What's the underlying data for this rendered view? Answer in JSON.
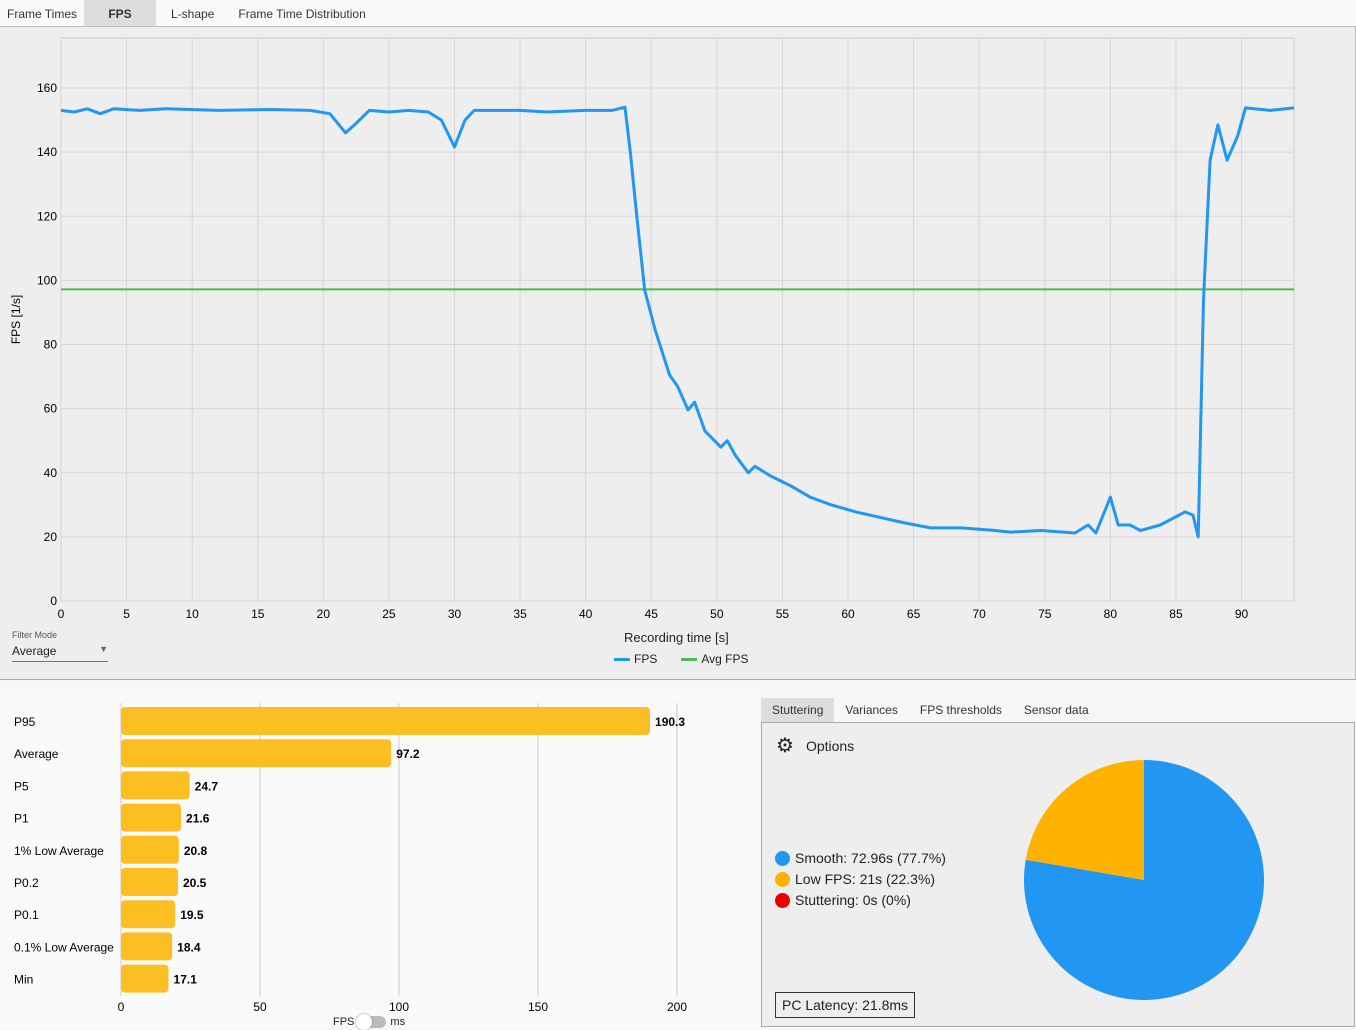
{
  "tabs": [
    "Frame Times",
    "FPS",
    "L-shape",
    "Frame Time Distribution"
  ],
  "active_tab": "FPS",
  "chart_data": [
    {
      "type": "line",
      "title": "",
      "xlabel": "Recording time [s]",
      "ylabel": "FPS [1/s]",
      "xlim": [
        0,
        94
      ],
      "ylim": [
        0,
        170
      ],
      "xticks": [
        0,
        5,
        10,
        15,
        20,
        25,
        30,
        35,
        40,
        45,
        50,
        55,
        60,
        65,
        70,
        75,
        80,
        85,
        90
      ],
      "yticks": [
        0,
        20,
        40,
        60,
        80,
        100,
        120,
        140,
        160
      ],
      "grid": true,
      "legend": "bottom-center",
      "series": [
        {
          "name": "FPS",
          "color": "#2196f3",
          "points": [
            [
              0,
              153
            ],
            [
              1,
              152.5
            ],
            [
              2,
              153.5
            ],
            [
              3,
              152
            ],
            [
              4,
              153.5
            ],
            [
              6,
              153
            ],
            [
              8,
              153.5
            ],
            [
              12,
              153
            ],
            [
              16,
              153.3
            ],
            [
              19,
              153
            ],
            [
              20.5,
              152
            ],
            [
              21.7,
              146
            ],
            [
              22.5,
              149
            ],
            [
              23.5,
              153
            ],
            [
              25,
              152.5
            ],
            [
              26.5,
              153
            ],
            [
              28,
              152.5
            ],
            [
              29,
              150
            ],
            [
              30,
              141.6
            ],
            [
              30.8,
              150
            ],
            [
              31.5,
              153
            ],
            [
              35,
              153
            ],
            [
              37,
              152.5
            ],
            [
              40,
              153
            ],
            [
              42,
              153
            ],
            [
              43,
              154
            ],
            [
              43.4,
              140
            ],
            [
              43.9,
              120
            ],
            [
              44.5,
              97
            ],
            [
              45.3,
              84.5
            ],
            [
              46.4,
              70.5
            ],
            [
              47,
              67
            ],
            [
              47.8,
              59.6
            ],
            [
              48.3,
              62
            ],
            [
              49.1,
              53
            ],
            [
              50.3,
              48
            ],
            [
              50.8,
              50
            ],
            [
              51.4,
              45.5
            ],
            [
              52.4,
              40
            ],
            [
              52.9,
              42
            ],
            [
              54.1,
              39
            ],
            [
              55.6,
              36
            ],
            [
              57.1,
              32.4
            ],
            [
              58.7,
              30
            ],
            [
              60.6,
              27.8
            ],
            [
              62.5,
              26
            ],
            [
              64.4,
              24.3
            ],
            [
              66.3,
              22.8
            ],
            [
              68.6,
              22.8
            ],
            [
              70.9,
              22.1
            ],
            [
              72.4,
              21.5
            ],
            [
              74.7,
              22
            ],
            [
              77.3,
              21.2
            ],
            [
              78.3,
              23.7
            ],
            [
              78.9,
              21.2
            ],
            [
              80,
              32.4
            ],
            [
              80.6,
              23.7
            ],
            [
              81.5,
              23.7
            ],
            [
              82.3,
              22
            ],
            [
              83.8,
              23.7
            ],
            [
              85.7,
              27.8
            ],
            [
              86.3,
              26.8
            ],
            [
              86.7,
              20
            ],
            [
              87.1,
              94
            ],
            [
              87.6,
              137.5
            ],
            [
              88.2,
              148.5
            ],
            [
              88.9,
              137.5
            ],
            [
              89.7,
              145
            ],
            [
              90.3,
              153.8
            ],
            [
              92.2,
              153
            ],
            [
              94,
              153.8
            ]
          ]
        },
        {
          "name": "Avg FPS",
          "color": "#4cbb4c",
          "value": 97.2
        }
      ]
    },
    {
      "type": "bar",
      "orientation": "horizontal",
      "categories": [
        "P95",
        "Average",
        "P5",
        "P1",
        "1% Low Average",
        "P0.2",
        "P0.1",
        "0.1% Low Average",
        "Min"
      ],
      "values": [
        190.3,
        97.2,
        24.7,
        21.6,
        20.8,
        20.5,
        19.5,
        18.4,
        17.1
      ],
      "labels": [
        "190.3",
        "97.2",
        "24.7",
        "21.6",
        "20.8",
        "20.5",
        "19.5",
        "18.4",
        "17.1"
      ],
      "xlim": [
        0,
        210
      ],
      "xticks": [
        0,
        50,
        100,
        150,
        200
      ],
      "color": "#fbbf24"
    },
    {
      "type": "pie",
      "slices": [
        {
          "name": "Smooth",
          "value": 77.7,
          "color": "#2196f3"
        },
        {
          "name": "Low FPS",
          "value": 22.3,
          "color": "#ffb300"
        },
        {
          "name": "Stuttering",
          "value": 0,
          "color": "#ee0000"
        }
      ]
    }
  ],
  "filter": {
    "label": "Filter Mode",
    "value": "Average"
  },
  "toggle": {
    "left": "FPS",
    "right": "ms"
  },
  "right_tabs": [
    "Stuttering",
    "Variances",
    "FPS thresholds",
    "Sensor data"
  ],
  "options_label": "Options",
  "pie_legend": [
    "Smooth:  72.96s (77.7%)",
    "Low FPS:  21s (22.3%)",
    "Stuttering:  0s (0%)"
  ],
  "latency": "PC Latency: 21.8ms"
}
